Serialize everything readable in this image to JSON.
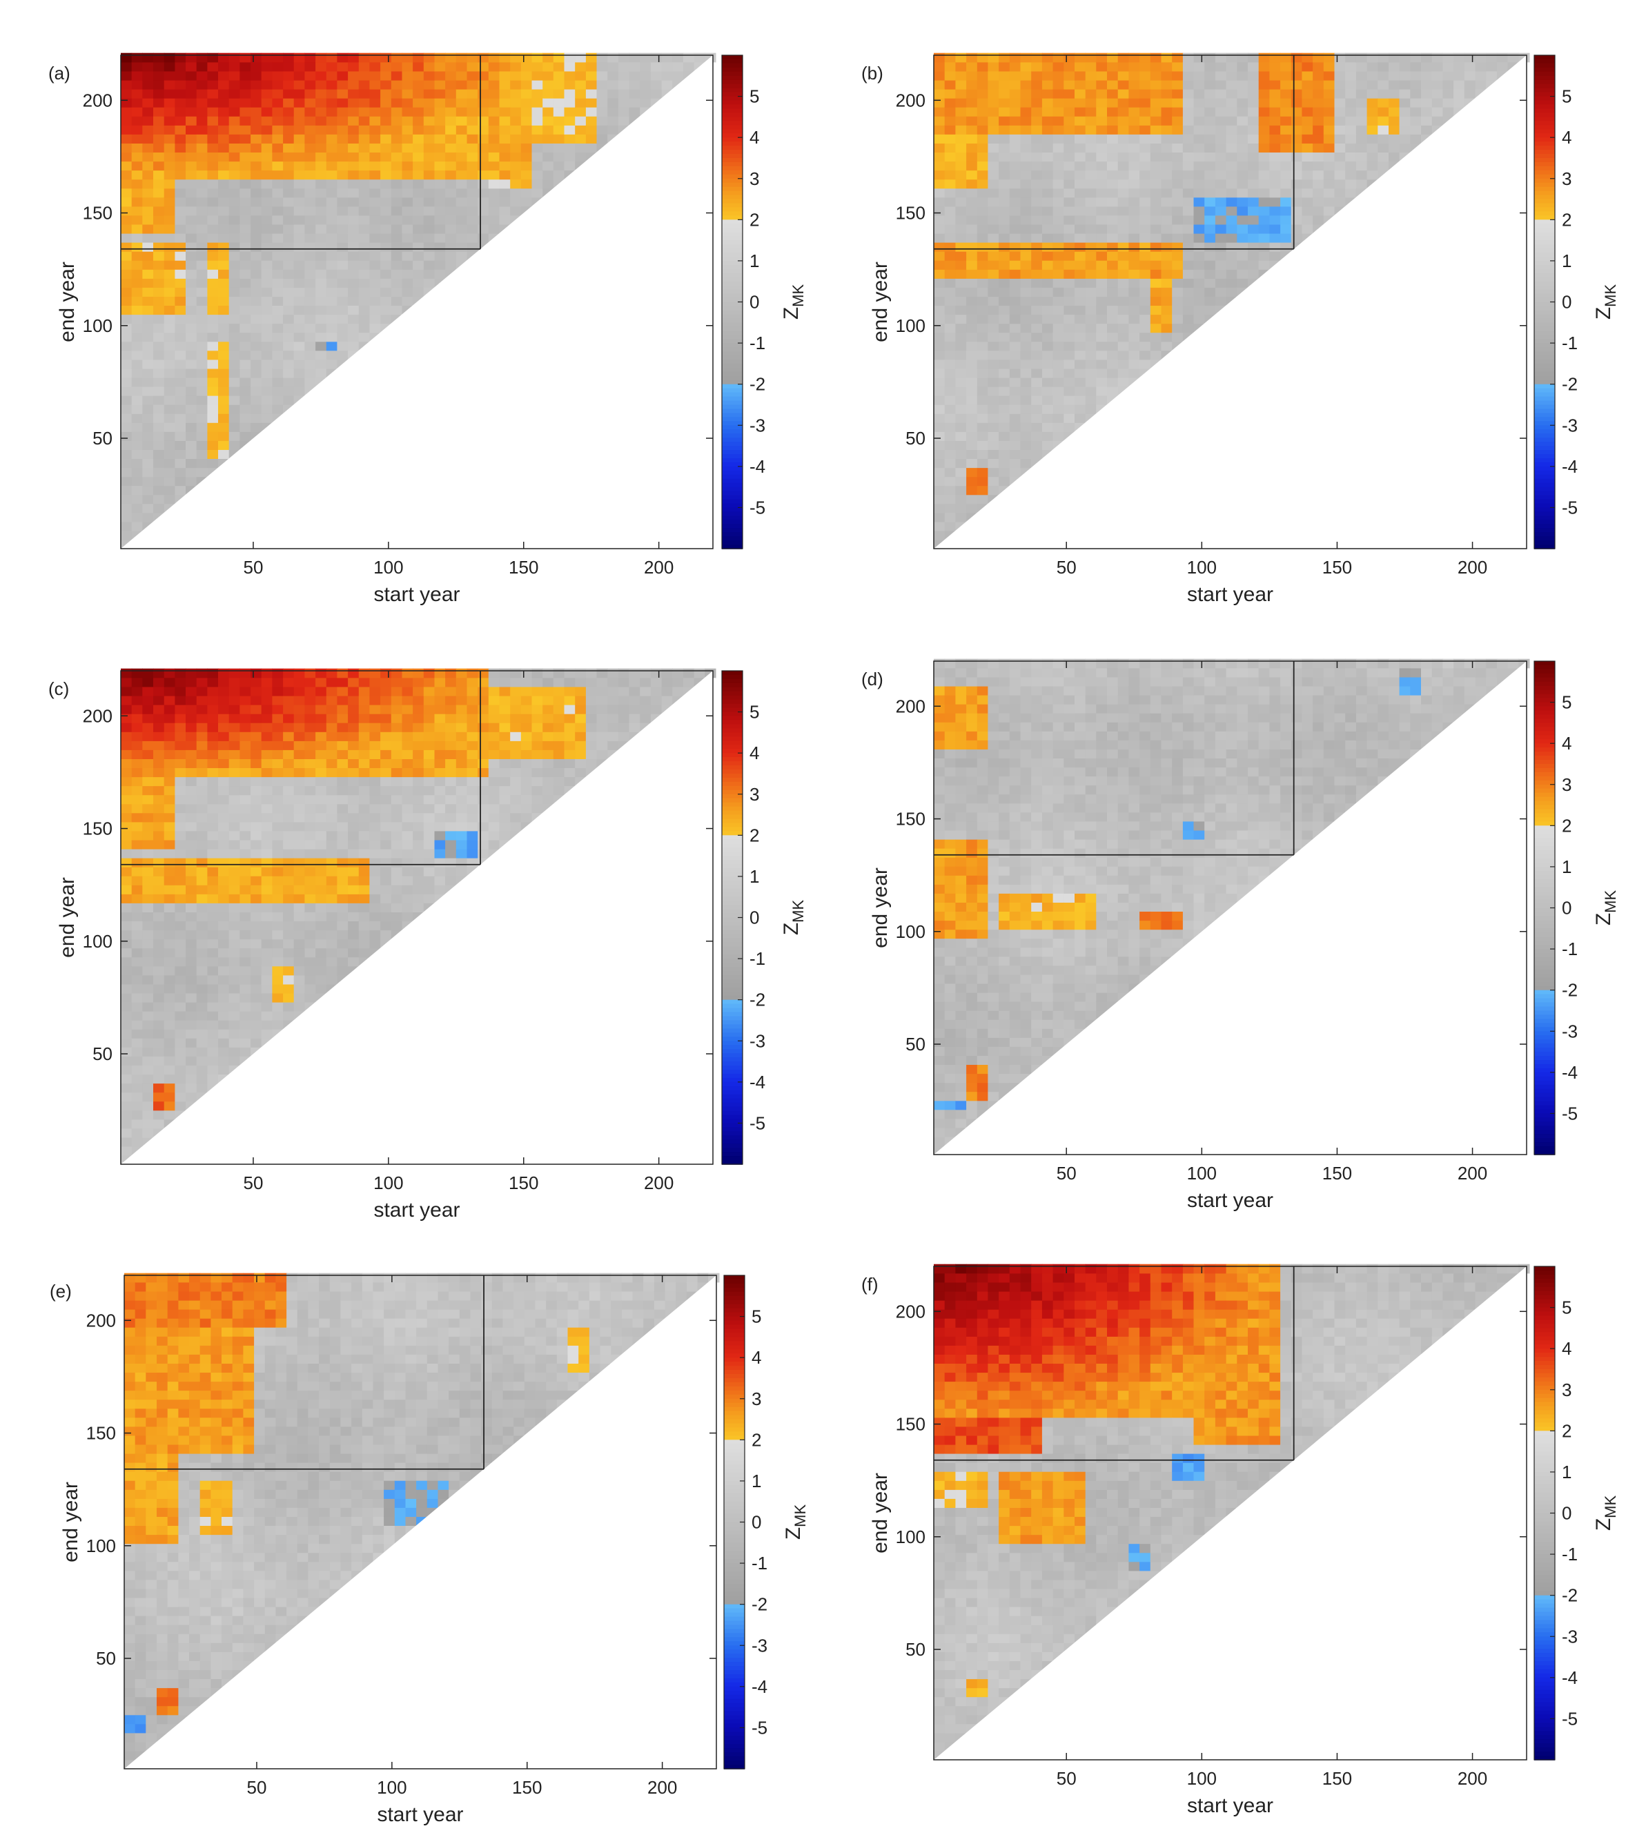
{
  "chart_data": [
    {
      "type": "heatmap",
      "panel_label": "(a)",
      "xlabel": "start year",
      "ylabel": "end year",
      "xticks": [
        50,
        100,
        150,
        200
      ],
      "yticks": [
        50,
        100,
        150,
        200
      ],
      "xlim": [
        1,
        220
      ],
      "ylim": [
        1,
        220
      ],
      "colorbar": {
        "title": "Z",
        "subscript": "MK",
        "ticks": [
          5,
          4,
          3,
          2,
          1,
          0,
          -1,
          -2,
          -3,
          -4,
          -5
        ],
        "range": [
          -6,
          6
        ]
      },
      "reference_year": 134,
      "regions": [
        {
          "x": [
            1,
            150
          ],
          "y": [
            165,
            220
          ],
          "z": 3.6,
          "peak_at": [
            1,
            220
          ],
          "peak_z": 5.8
        },
        {
          "x": [
            150,
            175
          ],
          "y": [
            180,
            220
          ],
          "z": 2.1
        },
        {
          "x": [
            1,
            20
          ],
          "y": [
            140,
            165
          ],
          "z": 2.4
        },
        {
          "x": [
            1,
            22
          ],
          "y": [
            105,
            134
          ],
          "z": 2.3
        },
        {
          "x": [
            30,
            38
          ],
          "y": [
            105,
            134
          ],
          "z": 2.3
        },
        {
          "x": [
            30,
            38
          ],
          "y": [
            40,
            90
          ],
          "z": 2.1
        },
        {
          "x": [
            135,
            150
          ],
          "y": [
            160,
            170
          ],
          "z": 2.2
        },
        {
          "x": [
            70,
            80
          ],
          "y": [
            88,
            92
          ],
          "z": -2.1
        }
      ]
    },
    {
      "type": "heatmap",
      "panel_label": "(b)",
      "xlabel": "start year",
      "ylabel": "end year",
      "xticks": [
        50,
        100,
        150,
        200
      ],
      "yticks": [
        50,
        100,
        150,
        200
      ],
      "xlim": [
        1,
        220
      ],
      "ylim": [
        1,
        220
      ],
      "colorbar": {
        "title": "Z",
        "subscript": "MK",
        "ticks": [
          5,
          4,
          3,
          2,
          1,
          0,
          -1,
          -2,
          -3,
          -4,
          -5
        ],
        "range": [
          -6,
          6
        ]
      },
      "reference_year": 134,
      "regions": [
        {
          "x": [
            1,
            90
          ],
          "y": [
            185,
            220
          ],
          "z": 2.7
        },
        {
          "x": [
            1,
            20
          ],
          "y": [
            160,
            185
          ],
          "z": 2.3
        },
        {
          "x": [
            120,
            145
          ],
          "y": [
            175,
            220
          ],
          "z": 2.9
        },
        {
          "x": [
            1,
            90
          ],
          "y": [
            118,
            136
          ],
          "z": 2.6
        },
        {
          "x": [
            80,
            88
          ],
          "y": [
            95,
            118
          ],
          "z": 2.4
        },
        {
          "x": [
            95,
            130
          ],
          "y": [
            135,
            155
          ],
          "z": -2.2
        },
        {
          "x": [
            10,
            20
          ],
          "y": [
            25,
            35
          ],
          "z": 3.2
        },
        {
          "x": [
            160,
            170
          ],
          "y": [
            185,
            200
          ],
          "z": 2.3
        }
      ]
    },
    {
      "type": "heatmap",
      "panel_label": "(c)",
      "xlabel": "start year",
      "ylabel": "end year",
      "xticks": [
        50,
        100,
        150,
        200
      ],
      "yticks": [
        50,
        100,
        150,
        200
      ],
      "xlim": [
        1,
        220
      ],
      "ylim": [
        1,
        220
      ],
      "colorbar": {
        "title": "Z",
        "subscript": "MK",
        "ticks": [
          5,
          4,
          3,
          2,
          1,
          0,
          -1,
          -2,
          -3,
          -4,
          -5
        ],
        "range": [
          -6,
          6
        ]
      },
      "reference_year": 134,
      "regions": [
        {
          "x": [
            1,
            135
          ],
          "y": [
            170,
            220
          ],
          "z": 3.7,
          "peak_at": [
            1,
            220
          ],
          "peak_z": 5.8
        },
        {
          "x": [
            135,
            170
          ],
          "y": [
            180,
            210
          ],
          "z": 2.3
        },
        {
          "x": [
            1,
            20
          ],
          "y": [
            140,
            170
          ],
          "z": 2.5
        },
        {
          "x": [
            1,
            90
          ],
          "y": [
            115,
            134
          ],
          "z": 2.4
        },
        {
          "x": [
            115,
            130
          ],
          "y": [
            135,
            145
          ],
          "z": -2.2
        },
        {
          "x": [
            10,
            20
          ],
          "y": [
            25,
            35
          ],
          "z": 3.3
        },
        {
          "x": [
            55,
            62
          ],
          "y": [
            70,
            85
          ],
          "z": 2.1
        }
      ]
    },
    {
      "type": "heatmap",
      "panel_label": "(d)",
      "xlabel": "start year",
      "ylabel": "end year",
      "xticks": [
        50,
        100,
        150,
        200
      ],
      "yticks": [
        50,
        100,
        150,
        200
      ],
      "xlim": [
        1,
        220
      ],
      "ylim": [
        1,
        220
      ],
      "colorbar": {
        "title": "Z",
        "subscript": "MK",
        "ticks": [
          5,
          4,
          3,
          2,
          1,
          0,
          -1,
          -2,
          -3,
          -4,
          -5
        ],
        "range": [
          -6,
          6
        ]
      },
      "reference_year": 134,
      "regions": [
        {
          "x": [
            1,
            18
          ],
          "y": [
            180,
            205
          ],
          "z": 2.6
        },
        {
          "x": [
            1,
            18
          ],
          "y": [
            95,
            140
          ],
          "z": 2.6
        },
        {
          "x": [
            25,
            60
          ],
          "y": [
            100,
            115
          ],
          "z": 2.3
        },
        {
          "x": [
            75,
            90
          ],
          "y": [
            100,
            108
          ],
          "z": 3.0
        },
        {
          "x": [
            10,
            18
          ],
          "y": [
            25,
            38
          ],
          "z": 3.0
        },
        {
          "x": [
            1,
            12
          ],
          "y": [
            18,
            24
          ],
          "z": -2.3
        },
        {
          "x": [
            90,
            100
          ],
          "y": [
            138,
            145
          ],
          "z": -2.1
        },
        {
          "x": [
            170,
            180
          ],
          "y": [
            205,
            215
          ],
          "z": -2.0
        }
      ]
    },
    {
      "type": "heatmap",
      "panel_label": "(e)",
      "xlabel": "start year",
      "ylabel": "end year",
      "xticks": [
        50,
        100,
        150,
        200
      ],
      "yticks": [
        50,
        100,
        150,
        200
      ],
      "xlim": [
        1,
        220
      ],
      "ylim": [
        1,
        220
      ],
      "colorbar": {
        "title": "Z",
        "subscript": "MK",
        "ticks": [
          5,
          4,
          3,
          2,
          1,
          0,
          -1,
          -2,
          -3,
          -4,
          -5
        ],
        "range": [
          -6,
          6
        ]
      },
      "reference_year": 134,
      "regions": [
        {
          "x": [
            1,
            58
          ],
          "y": [
            195,
            220
          ],
          "z": 3.0
        },
        {
          "x": [
            1,
            45
          ],
          "y": [
            140,
            195
          ],
          "z": 2.6
        },
        {
          "x": [
            1,
            20
          ],
          "y": [
            100,
            140
          ],
          "z": 2.5
        },
        {
          "x": [
            28,
            40
          ],
          "y": [
            105,
            125
          ],
          "z": 2.3
        },
        {
          "x": [
            10,
            20
          ],
          "y": [
            25,
            35
          ],
          "z": 3.0
        },
        {
          "x": [
            1,
            8
          ],
          "y": [
            17,
            23
          ],
          "z": -2.3
        },
        {
          "x": [
            95,
            120
          ],
          "y": [
            108,
            128
          ],
          "z": -2.0
        },
        {
          "x": [
            165,
            172
          ],
          "y": [
            175,
            195
          ],
          "z": 2.1
        }
      ]
    },
    {
      "type": "heatmap",
      "panel_label": "(f)",
      "xlabel": "start year",
      "ylabel": "end year",
      "xticks": [
        50,
        100,
        150,
        200
      ],
      "yticks": [
        50,
        100,
        150,
        200
      ],
      "xlim": [
        1,
        220
      ],
      "ylim": [
        1,
        220
      ],
      "colorbar": {
        "title": "Z",
        "subscript": "MK",
        "ticks": [
          5,
          4,
          3,
          2,
          1,
          0,
          -1,
          -2,
          -3,
          -4,
          -5
        ],
        "range": [
          -6,
          6
        ]
      },
      "reference_year": 134,
      "regions": [
        {
          "x": [
            1,
            125
          ],
          "y": [
            150,
            220
          ],
          "z": 3.9,
          "peak_at": [
            1,
            220
          ],
          "peak_z": 5.8
        },
        {
          "x": [
            1,
            40
          ],
          "y": [
            135,
            150
          ],
          "z": 3.6
        },
        {
          "x": [
            95,
            125
          ],
          "y": [
            140,
            165
          ],
          "z": 2.7
        },
        {
          "x": [
            25,
            55
          ],
          "y": [
            95,
            125
          ],
          "z": 2.6
        },
        {
          "x": [
            1,
            20
          ],
          "y": [
            110,
            125
          ],
          "z": 2.2
        },
        {
          "x": [
            88,
            100
          ],
          "y": [
            123,
            133
          ],
          "z": -2.2
        },
        {
          "x": [
            70,
            78
          ],
          "y": [
            82,
            95
          ],
          "z": -2.0
        },
        {
          "x": [
            10,
            18
          ],
          "y": [
            27,
            35
          ],
          "z": 2.4
        }
      ]
    }
  ]
}
